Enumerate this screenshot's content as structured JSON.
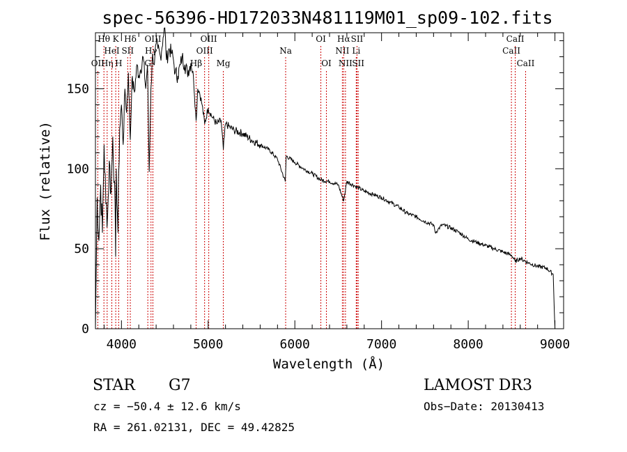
{
  "chart_data": {
    "type": "line",
    "title": "spec-56396-HD172033N481119M01_sp09-102.fits",
    "xlabel": "Wavelength (Å)",
    "ylabel": "Flux (relative)",
    "xlim": [
      3700,
      9100
    ],
    "ylim": [
      0,
      185
    ],
    "xticks": [
      4000,
      5000,
      6000,
      7000,
      8000,
      9000
    ],
    "yticks": [
      0,
      50,
      100,
      150
    ],
    "series": [
      {
        "name": "spectrum",
        "x": [
          3700,
          3720,
          3740,
          3760,
          3780,
          3800,
          3820,
          3840,
          3860,
          3880,
          3900,
          3920,
          3933,
          3940,
          3960,
          3968,
          3980,
          4000,
          4020,
          4040,
          4060,
          4080,
          4102,
          4120,
          4150,
          4180,
          4200,
          4220,
          4250,
          4280,
          4300,
          4320,
          4340,
          4360,
          4380,
          4400,
          4420,
          4450,
          4480,
          4500,
          4520,
          4550,
          4580,
          4600,
          4620,
          4650,
          4680,
          4700,
          4730,
          4760,
          4800,
          4830,
          4861,
          4880,
          4900,
          4930,
          4960,
          5000,
          5050,
          5100,
          5150,
          5175,
          5200,
          5250,
          5300,
          5400,
          5500,
          5600,
          5700,
          5800,
          5890,
          5900,
          6000,
          6100,
          6200,
          6300,
          6400,
          6500,
          6563,
          6600,
          6700,
          6800,
          6900,
          7000,
          7100,
          7200,
          7300,
          7400,
          7500,
          7600,
          7620,
          7650,
          7700,
          7800,
          7900,
          8000,
          8100,
          8200,
          8300,
          8400,
          8500,
          8542,
          8600,
          8700,
          8800,
          8900,
          8980,
          9000
        ],
        "values": [
          0,
          82,
          55,
          90,
          60,
          115,
          78,
          70,
          105,
          85,
          120,
          92,
          45,
          100,
          60,
          98,
          125,
          140,
          115,
          150,
          135,
          160,
          118,
          155,
          148,
          165,
          158,
          162,
          170,
          150,
          165,
          98,
          150,
          172,
          165,
          178,
          175,
          170,
          182,
          188,
          168,
          175,
          172,
          168,
          160,
          158,
          165,
          170,
          165,
          160,
          166,
          158,
          130,
          150,
          148,
          140,
          128,
          138,
          132,
          128,
          130,
          112,
          128,
          126,
          124,
          122,
          118,
          115,
          112,
          106,
          92,
          108,
          104,
          100,
          97,
          93,
          92,
          90,
          80,
          92,
          89,
          86,
          84,
          82,
          79,
          76,
          72,
          70,
          67,
          65,
          60,
          62,
          65,
          63,
          60,
          56,
          54,
          52,
          50,
          48,
          46,
          42,
          44,
          41,
          39,
          38,
          34,
          0
        ]
      }
    ],
    "spectral_lines": [
      {
        "label": "OII",
        "wavelength": 3727,
        "row": 2
      },
      {
        "label": "Hθ",
        "wavelength": 3798,
        "row": 0
      },
      {
        "label": "Hη",
        "wavelength": 3835,
        "row": 2
      },
      {
        "label": "HeI",
        "wavelength": 3889,
        "row": 1
      },
      {
        "label": "K",
        "wavelength": 3934,
        "row": 0
      },
      {
        "label": "H",
        "wavelength": 3968,
        "row": 2
      },
      {
        "label": "SII",
        "wavelength": 4072,
        "row": 1
      },
      {
        "label": "Hδ",
        "wavelength": 4102,
        "row": 0
      },
      {
        "label": "G",
        "wavelength": 4304,
        "row": 2
      },
      {
        "label": "Hγ",
        "wavelength": 4341,
        "row": 1
      },
      {
        "label": "OIII",
        "wavelength": 4363,
        "row": 0
      },
      {
        "label": "Hβ",
        "wavelength": 4861,
        "row": 2
      },
      {
        "label": "OIII",
        "wavelength": 4959,
        "row": 1
      },
      {
        "label": "OIII",
        "wavelength": 5007,
        "row": 0
      },
      {
        "label": "Mg",
        "wavelength": 5175,
        "row": 2
      },
      {
        "label": "Na",
        "wavelength": 5894,
        "row": 1
      },
      {
        "label": "OI",
        "wavelength": 6300,
        "row": 0
      },
      {
        "label": "OI",
        "wavelength": 6364,
        "row": 2
      },
      {
        "label": "NII",
        "wavelength": 6548,
        "row": 1
      },
      {
        "label": "Hα",
        "wavelength": 6563,
        "row": 0
      },
      {
        "label": "NII",
        "wavelength": 6584,
        "row": 2
      },
      {
        "label": "SII",
        "wavelength": 6717,
        "row": 0
      },
      {
        "label": "Li",
        "wavelength": 6708,
        "row": 1
      },
      {
        "label": "SII",
        "wavelength": 6731,
        "row": 2
      },
      {
        "label": "CaII",
        "wavelength": 8498,
        "row": 1
      },
      {
        "label": "CaII",
        "wavelength": 8542,
        "row": 0
      },
      {
        "label": "CaII",
        "wavelength": 8662,
        "row": 2
      }
    ]
  },
  "info": {
    "class": "STAR",
    "subclass": "G7",
    "survey": "LAMOST DR3",
    "cz": "cz = −50.4 ± 12.6 km/s",
    "obs_date": "Obs−Date: 20130413",
    "coords": "RA = 261.02131, DEC =  49.42825"
  },
  "colors": {
    "line": "#000000",
    "marker": "#cc0000"
  }
}
